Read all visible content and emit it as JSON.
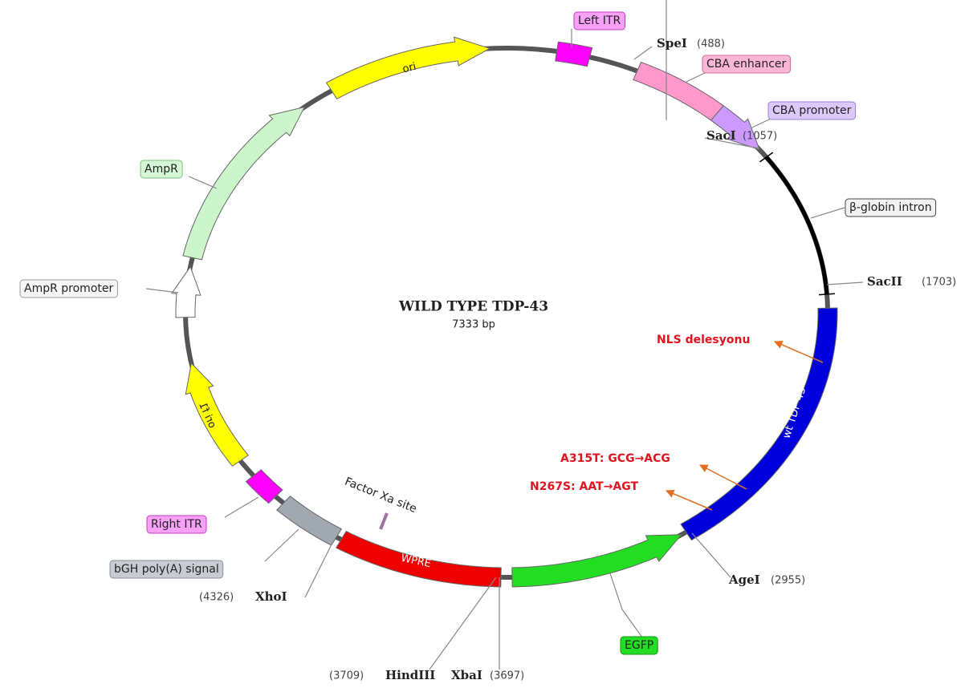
{
  "title": "WILD TYPE TDP-43",
  "size": "7333 bp",
  "features": [
    {
      "label": "ori"
    },
    {
      "label": "Left ITR"
    },
    {
      "label": "CBA enhancer"
    },
    {
      "label": "CBA promoter"
    },
    {
      "label": "β-globin intron"
    },
    {
      "label": "wt TDP 43"
    },
    {
      "label": "EGFP"
    },
    {
      "label": "WPRE"
    },
    {
      "label": "bGH poly(A) signal"
    },
    {
      "label": "Right ITR"
    },
    {
      "label": "ori f1"
    },
    {
      "label": "AmpR promoter"
    },
    {
      "label": "AmpR"
    }
  ],
  "sites": [
    {
      "name": "SpeI",
      "position": "(488)"
    },
    {
      "name": "SacI",
      "position": "(1057)"
    },
    {
      "name": "SacII",
      "position": "(1703)"
    },
    {
      "name": "AgeI",
      "position": "(2955)"
    },
    {
      "name": "XbaI",
      "position": "(3697)"
    },
    {
      "name": "HindIII",
      "position": "(3709)"
    },
    {
      "name": "XhoI",
      "position": "(4326)"
    }
  ],
  "other": {
    "factor_xa": "Factor Xa site"
  },
  "annotations": [
    "NLS delesyonu",
    "A315T: GCG→ACG",
    "N267S: AAT→AGT"
  ]
}
